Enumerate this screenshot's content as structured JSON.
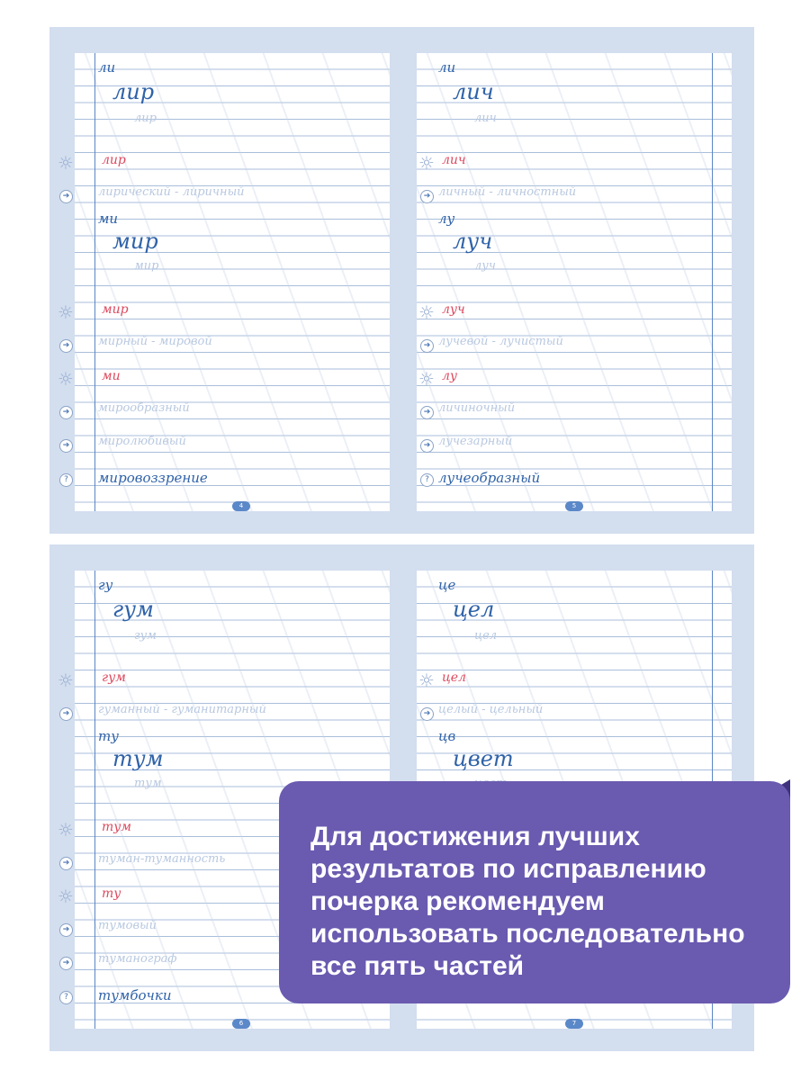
{
  "spreads": [
    {
      "pages": [
        {
          "number": "4",
          "syllable1": "ли",
          "word1": "лир",
          "red1": "лир",
          "words1": "лирический - лиричный",
          "syllable2": "ми",
          "word2": "мир",
          "red2": "мир",
          "words2": "мирный - мировой",
          "red3": "ми",
          "word3": "мирообразный",
          "word4": "миролюбивый",
          "question": "мировоззрение"
        },
        {
          "number": "5",
          "syllable1": "ли",
          "word1": "лич",
          "red1": "лич",
          "words1": "личный - личностный",
          "syllable2": "лу",
          "word2": "луч",
          "red2": "луч",
          "words2": "лучевой - лучистый",
          "red3": "лу",
          "word3": "личиночный",
          "word4": "лучезарный",
          "question": "лучеобразный"
        }
      ]
    },
    {
      "pages": [
        {
          "number": "6",
          "syllable1": "гу",
          "word1": "гум",
          "red1": "гум",
          "words1": "гуманный - гуманитарный",
          "syllable2": "ту",
          "word2": "тум",
          "red2": "тум",
          "words2": "туман-туманность",
          "red3": "ту",
          "word3": "тумовый",
          "word4": "туманограф",
          "question": "тумбочки"
        },
        {
          "number": "7",
          "syllable1": "це",
          "word1": "цел",
          "red1": "цел",
          "words1": "целый - цельный",
          "syllable2": "цв",
          "word2": "цвет",
          "red2": "",
          "words2": "",
          "red3": "",
          "word3": "",
          "word4": "",
          "question": ""
        }
      ]
    }
  ],
  "promo": {
    "text": "Для достижения лучших результатов по исправлению почерка рекомендуем использовать последовательно все пять частей"
  },
  "icons": {
    "sun": "sun-icon",
    "arrow": "arrow-circle-icon",
    "question": "question-circle-icon"
  },
  "colors": {
    "background": "#d3deef",
    "accent_red": "#dd4a5e",
    "ink_blue": "#2f62a8",
    "promo": "#6a5ab0"
  }
}
